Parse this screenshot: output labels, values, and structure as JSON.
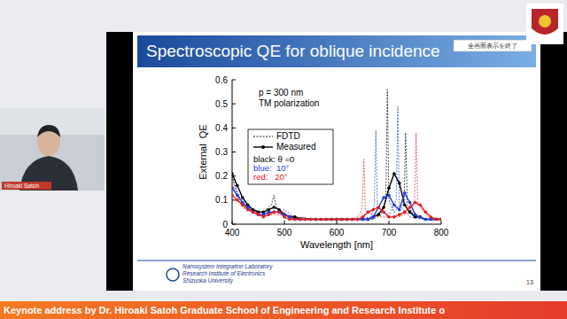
{
  "page": {
    "banner": "Keynote address by Dr. Hiroaki Satoh Graduate School of Engineering and Research Institute o",
    "speaker": "Hiroaki Satoh",
    "button": "全画面表示を終了"
  },
  "slide": {
    "title": "Spectroscopic QE for oblique incidence",
    "footer": [
      "Nanosystem Integration Laboratory",
      "Research Institute of Electronics",
      "Shizuoka University"
    ],
    "page_number": "13"
  },
  "chart_data": {
    "type": "line",
    "x_label": "Wavelength [nm]",
    "y_label": "External  QE",
    "annotations": [
      "p = 300 nm",
      "TM polarization"
    ],
    "legend": "upper left",
    "legend_notes": [
      {
        "text": "black: θ =0",
        "color": "#000000"
      },
      {
        "text": "blue:  10°",
        "color": "#1f3ce0"
      },
      {
        "text": "red:   20°",
        "color": "#e02020"
      }
    ],
    "grid": false,
    "xlim": [
      400,
      800
    ],
    "xticks": [
      400,
      500,
      600,
      700,
      800
    ],
    "ylim": [
      0,
      0.6
    ],
    "yticks": [
      0,
      0.1,
      0.2,
      0.3,
      0.4,
      0.5,
      0.6
    ],
    "series": [
      {
        "name": "FDTD",
        "color": "#000000",
        "line_style": "dashed",
        "x": [
          400,
          410,
          420,
          440,
          460,
          475,
          480,
          485,
          500,
          520,
          560,
          600,
          640,
          670,
          685,
          694,
          697,
          700,
          710,
          729,
          732,
          735,
          750,
          770,
          800
        ],
        "values": [
          0.2,
          0.13,
          0.09,
          0.06,
          0.05,
          0.08,
          0.12,
          0.07,
          0.04,
          0.03,
          0.02,
          0.02,
          0.02,
          0.02,
          0.04,
          0.1,
          0.56,
          0.1,
          0.05,
          0.1,
          0.38,
          0.08,
          0.03,
          0.02,
          0.02
        ]
      },
      {
        "name": "FDTD",
        "color": "#1f3ce0",
        "line_style": "dashed",
        "x": [
          400,
          410,
          420,
          440,
          460,
          480,
          500,
          520,
          560,
          600,
          640,
          665,
          672,
          675,
          678,
          700,
          714,
          717,
          720,
          740,
          770,
          800
        ],
        "values": [
          0.19,
          0.12,
          0.08,
          0.05,
          0.04,
          0.05,
          0.06,
          0.03,
          0.02,
          0.02,
          0.02,
          0.03,
          0.08,
          0.39,
          0.07,
          0.04,
          0.1,
          0.49,
          0.08,
          0.03,
          0.02,
          0.02
        ]
      },
      {
        "name": "FDTD",
        "color": "#e02020",
        "line_style": "dashed",
        "x": [
          400,
          410,
          420,
          440,
          460,
          480,
          500,
          520,
          560,
          600,
          630,
          645,
          649,
          652,
          655,
          680,
          720,
          745,
          749,
          752,
          755,
          768,
          780,
          800
        ],
        "values": [
          0.17,
          0.11,
          0.07,
          0.05,
          0.04,
          0.04,
          0.04,
          0.03,
          0.02,
          0.02,
          0.02,
          0.04,
          0.08,
          0.27,
          0.06,
          0.03,
          0.03,
          0.06,
          0.1,
          0.38,
          0.08,
          0.05,
          0.03,
          0.02
        ]
      },
      {
        "name": "Measured",
        "color": "#000000",
        "line_style": "solid",
        "marker": "circle",
        "x": [
          400,
          410,
          420,
          430,
          440,
          450,
          460,
          470,
          480,
          490,
          500,
          510,
          520,
          530,
          540,
          550,
          560,
          570,
          580,
          590,
          600,
          610,
          620,
          630,
          640,
          650,
          660,
          670,
          680,
          690,
          700,
          710,
          720,
          730,
          740,
          750,
          760,
          770,
          780,
          790,
          800
        ],
        "values": [
          0.21,
          0.16,
          0.11,
          0.08,
          0.06,
          0.05,
          0.05,
          0.06,
          0.07,
          0.06,
          0.04,
          0.03,
          0.03,
          0.02,
          0.02,
          0.02,
          0.02,
          0.02,
          0.02,
          0.02,
          0.02,
          0.02,
          0.02,
          0.02,
          0.02,
          0.02,
          0.02,
          0.03,
          0.04,
          0.07,
          0.15,
          0.21,
          0.17,
          0.08,
          0.05,
          0.03,
          0.03,
          0.02,
          0.02,
          0.02,
          0.02
        ]
      },
      {
        "name": "Measured",
        "color": "#1f3ce0",
        "line_style": "solid",
        "marker": "circle",
        "x": [
          400,
          410,
          420,
          430,
          440,
          450,
          460,
          470,
          480,
          490,
          500,
          510,
          520,
          530,
          540,
          550,
          560,
          570,
          580,
          590,
          600,
          610,
          620,
          630,
          640,
          650,
          660,
          670,
          680,
          690,
          700,
          710,
          720,
          730,
          740,
          750,
          760,
          770,
          780,
          790,
          800
        ],
        "values": [
          0.15,
          0.12,
          0.09,
          0.07,
          0.05,
          0.04,
          0.04,
          0.05,
          0.05,
          0.05,
          0.04,
          0.03,
          0.02,
          0.02,
          0.02,
          0.02,
          0.02,
          0.02,
          0.02,
          0.02,
          0.02,
          0.02,
          0.02,
          0.02,
          0.02,
          0.02,
          0.02,
          0.03,
          0.07,
          0.11,
          0.12,
          0.08,
          0.06,
          0.13,
          0.09,
          0.04,
          0.03,
          0.02,
          0.02,
          0.02,
          0.02
        ]
      },
      {
        "name": "Measured",
        "color": "#e02020",
        "line_style": "solid",
        "marker": "circle",
        "x": [
          400,
          410,
          420,
          430,
          440,
          450,
          460,
          470,
          480,
          490,
          500,
          510,
          520,
          530,
          540,
          550,
          560,
          570,
          580,
          590,
          600,
          610,
          620,
          630,
          640,
          650,
          660,
          670,
          680,
          690,
          700,
          710,
          720,
          730,
          740,
          750,
          760,
          770,
          780,
          790,
          800
        ],
        "values": [
          0.12,
          0.1,
          0.08,
          0.06,
          0.05,
          0.04,
          0.03,
          0.04,
          0.05,
          0.05,
          0.03,
          0.02,
          0.02,
          0.02,
          0.02,
          0.02,
          0.02,
          0.02,
          0.02,
          0.02,
          0.02,
          0.02,
          0.02,
          0.02,
          0.02,
          0.03,
          0.05,
          0.06,
          0.07,
          0.05,
          0.03,
          0.03,
          0.04,
          0.05,
          0.07,
          0.09,
          0.08,
          0.05,
          0.03,
          0.02,
          0.02
        ]
      }
    ]
  }
}
